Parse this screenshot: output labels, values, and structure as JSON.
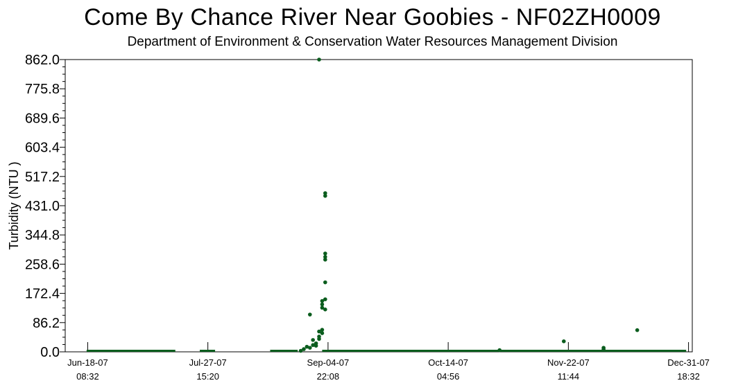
{
  "chart_data": {
    "type": "scatter",
    "title": "Come By Chance River Near Goobies - NF02ZH0009",
    "subtitle": "Department of Environment & Conservation Water Resources Management Division",
    "ylabel": "Turbidity (NTU )",
    "xlabel": "",
    "ylim": [
      0,
      862
    ],
    "yticks": [
      "0.0",
      "86.2",
      "172.4",
      "258.6",
      "344.8",
      "431.0",
      "517.2",
      "603.4",
      "689.6",
      "775.8",
      "862.0"
    ],
    "xlim": [
      "2007-06-11",
      "2008-01-02"
    ],
    "xticks": [
      {
        "date": "2007-06-18T08:32",
        "line1": "Jun-18-07",
        "line2": "08:32"
      },
      {
        "date": "2007-07-27T15:20",
        "line1": "Jul-27-07",
        "line2": "15:20"
      },
      {
        "date": "2007-09-04T22:08",
        "line1": "Sep-04-07",
        "line2": "22:08"
      },
      {
        "date": "2007-10-14T04:56",
        "line1": "Oct-14-07",
        "line2": "04:56"
      },
      {
        "date": "2007-11-22T11:44",
        "line1": "Nov-22-07",
        "line2": "11:44"
      },
      {
        "date": "2007-12-31T18:32",
        "line1": "Dec-31-07",
        "line2": "18:32"
      }
    ],
    "grid": false,
    "marker_color": "#0b5d1e",
    "baseline_segments": [
      {
        "from": "2007-06-18",
        "to": "2007-07-17",
        "value": 1
      },
      {
        "from": "2007-07-25",
        "to": "2007-07-30",
        "value": 1
      },
      {
        "from": "2007-08-17",
        "to": "2007-08-26",
        "value": 1
      },
      {
        "from": "2007-09-03",
        "to": "2007-12-31",
        "value": 1
      }
    ],
    "series": [
      {
        "points": [
          {
            "x": "2007-08-27",
            "y": 3
          },
          {
            "x": "2007-08-28",
            "y": 8
          },
          {
            "x": "2007-08-29",
            "y": 15
          },
          {
            "x": "2007-08-30",
            "y": 110
          },
          {
            "x": "2007-08-30",
            "y": 12
          },
          {
            "x": "2007-08-31",
            "y": 35
          },
          {
            "x": "2007-08-31",
            "y": 20
          },
          {
            "x": "2007-09-01",
            "y": 25
          },
          {
            "x": "2007-09-01",
            "y": 18
          },
          {
            "x": "2007-09-02",
            "y": 862
          },
          {
            "x": "2007-09-02",
            "y": 45
          },
          {
            "x": "2007-09-02",
            "y": 60
          },
          {
            "x": "2007-09-02",
            "y": 38
          },
          {
            "x": "2007-09-03",
            "y": 65
          },
          {
            "x": "2007-09-03",
            "y": 55
          },
          {
            "x": "2007-09-03",
            "y": 130
          },
          {
            "x": "2007-09-03",
            "y": 150
          },
          {
            "x": "2007-09-03",
            "y": 140
          },
          {
            "x": "2007-09-04",
            "y": 468
          },
          {
            "x": "2007-09-04",
            "y": 460
          },
          {
            "x": "2007-09-04",
            "y": 290
          },
          {
            "x": "2007-09-04",
            "y": 280
          },
          {
            "x": "2007-09-04",
            "y": 272
          },
          {
            "x": "2007-09-04",
            "y": 205
          },
          {
            "x": "2007-09-04",
            "y": 155
          },
          {
            "x": "2007-09-04",
            "y": 125
          },
          {
            "x": "2007-10-31",
            "y": 5
          },
          {
            "x": "2007-11-21",
            "y": 31
          },
          {
            "x": "2007-12-04",
            "y": 12
          },
          {
            "x": "2007-12-04",
            "y": 8
          },
          {
            "x": "2007-12-15",
            "y": 64
          }
        ]
      }
    ]
  }
}
